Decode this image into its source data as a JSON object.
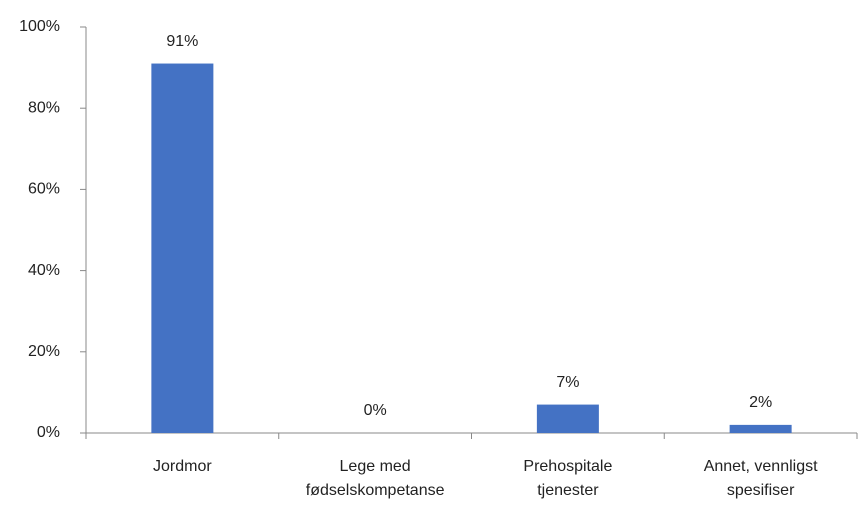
{
  "chart_data": {
    "type": "bar",
    "categories": [
      "Jordmor",
      "Lege med\nfødselskompetanse",
      "Prehospitale\ntjenester",
      "Annet, vennligst\nspesifiser"
    ],
    "values": [
      91,
      0,
      7,
      2
    ],
    "value_labels": [
      "91%",
      "0%",
      "7%",
      "2%"
    ],
    "color": "#4472c4",
    "ylim": [
      0,
      100
    ],
    "yticks": [
      {
        "value": 0,
        "label": "0%"
      },
      {
        "value": 20,
        "label": "20%"
      },
      {
        "value": 40,
        "label": "40%"
      },
      {
        "value": 60,
        "label": "60%"
      },
      {
        "value": 80,
        "label": "80%"
      },
      {
        "value": 100,
        "label": "100%"
      }
    ],
    "grid": false
  }
}
